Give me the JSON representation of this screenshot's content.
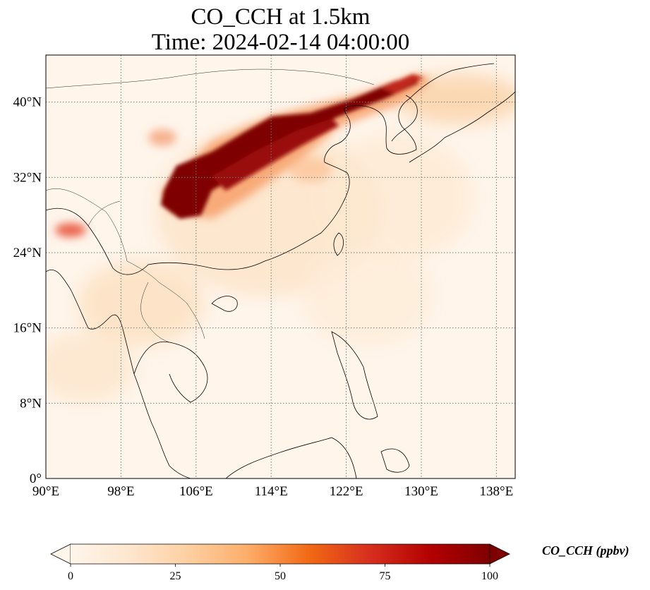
{
  "title": {
    "line1": "CO_CCH at 1.5km",
    "line2": "Time: 2024-02-14 04:00:00"
  },
  "map": {
    "projection": "PlateCarree",
    "lon_range": [
      90,
      140
    ],
    "lat_range": [
      0,
      45
    ],
    "lon_ticks": [
      {
        "lon": 90,
        "label": "90°E"
      },
      {
        "lon": 98,
        "label": "98°E"
      },
      {
        "lon": 106,
        "label": "106°E"
      },
      {
        "lon": 114,
        "label": "114°E"
      },
      {
        "lon": 122,
        "label": "122°E"
      },
      {
        "lon": 130,
        "label": "130°E"
      },
      {
        "lon": 138,
        "label": "138°E"
      }
    ],
    "lat_ticks": [
      {
        "lat": 0,
        "label": "0°"
      },
      {
        "lat": 8,
        "label": "8°N"
      },
      {
        "lat": 16,
        "label": "16°N"
      },
      {
        "lat": 24,
        "label": "24°N"
      },
      {
        "lat": 32,
        "label": "32°N"
      },
      {
        "lat": 40,
        "label": "40°N"
      }
    ],
    "gridlines": true,
    "colormap": "OrRd",
    "background_color": "#fff5eb"
  },
  "colorbar": {
    "label": "CO_CCH (ppbv)",
    "min": 0,
    "max": 100,
    "extend": "both",
    "ticks": [
      {
        "value": 0,
        "label": "0"
      },
      {
        "value": 25,
        "label": "25"
      },
      {
        "value": 50,
        "label": "50"
      },
      {
        "value": 75,
        "label": "75"
      },
      {
        "value": 100,
        "label": "100"
      }
    ],
    "colors": [
      "#fff5eb",
      "#fee6ce",
      "#fdd0a2",
      "#fdae6b",
      "#f16913",
      "#d7301f",
      "#b30000",
      "#7f0000"
    ]
  }
}
